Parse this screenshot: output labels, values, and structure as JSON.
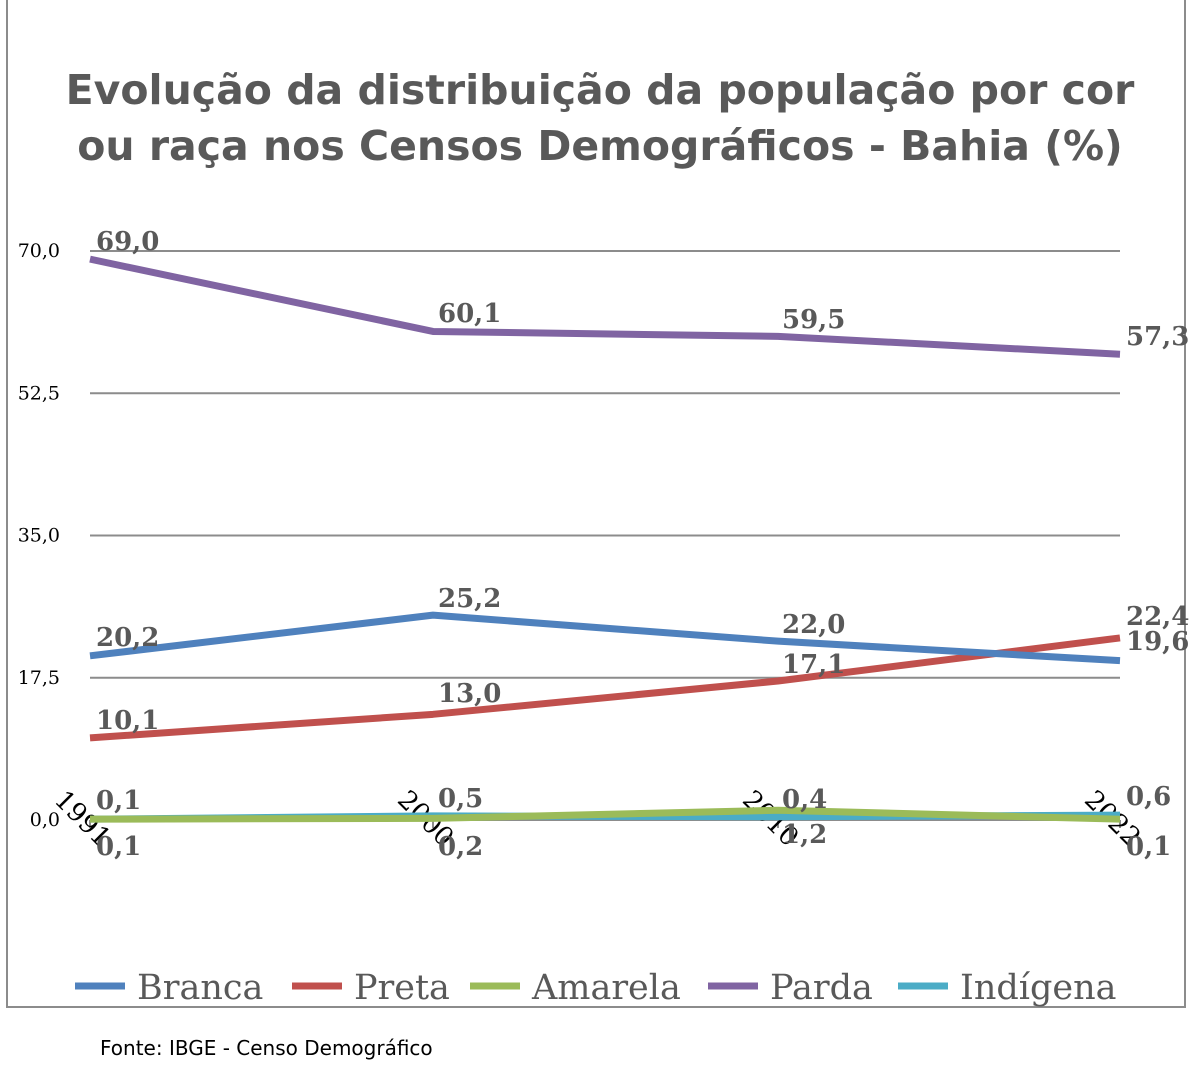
{
  "chart_data": {
    "type": "line",
    "title": "Evolução da distribuição da população por cor ou raça nos Censos Demográficos - Bahia (%)",
    "categories": [
      "1991",
      "2000",
      "2010",
      "2022"
    ],
    "ylim": [
      0,
      70
    ],
    "yticks": [
      "0,0",
      "17,5",
      "35,0",
      "52,5",
      "70,0"
    ],
    "ytick_values": [
      0,
      17.5,
      35,
      52.5,
      70
    ],
    "grid": true,
    "legend_position": "bottom",
    "series": [
      {
        "name": "Branca",
        "color": "#4f81bd",
        "values": [
          20.2,
          25.2,
          22.0,
          19.6
        ],
        "labels": [
          "20,2",
          "25,2",
          "22,0",
          "19,6"
        ]
      },
      {
        "name": "Preta",
        "color": "#c0504d",
        "values": [
          10.1,
          13.0,
          17.1,
          22.4
        ],
        "labels": [
          "10,1",
          "13,0",
          "17,1",
          "22,4"
        ]
      },
      {
        "name": "Amarela",
        "color": "#9bbb59",
        "values": [
          0.1,
          0.2,
          1.2,
          0.1
        ],
        "labels": [
          "0,1",
          "0,2",
          "1,2",
          "0,1"
        ]
      },
      {
        "name": "Parda",
        "color": "#8064a2",
        "values": [
          69.0,
          60.1,
          59.5,
          57.3
        ],
        "labels": [
          "69,0",
          "60,1",
          "59,5",
          "57,3"
        ]
      },
      {
        "name": "Indígena",
        "color": "#4bacc6",
        "values": [
          0.1,
          0.5,
          0.4,
          0.6
        ],
        "labels": [
          "0,1",
          "0,5",
          "0,4",
          "0,6"
        ]
      }
    ]
  },
  "source": "Fonte: IBGE - Censo Demográfico"
}
